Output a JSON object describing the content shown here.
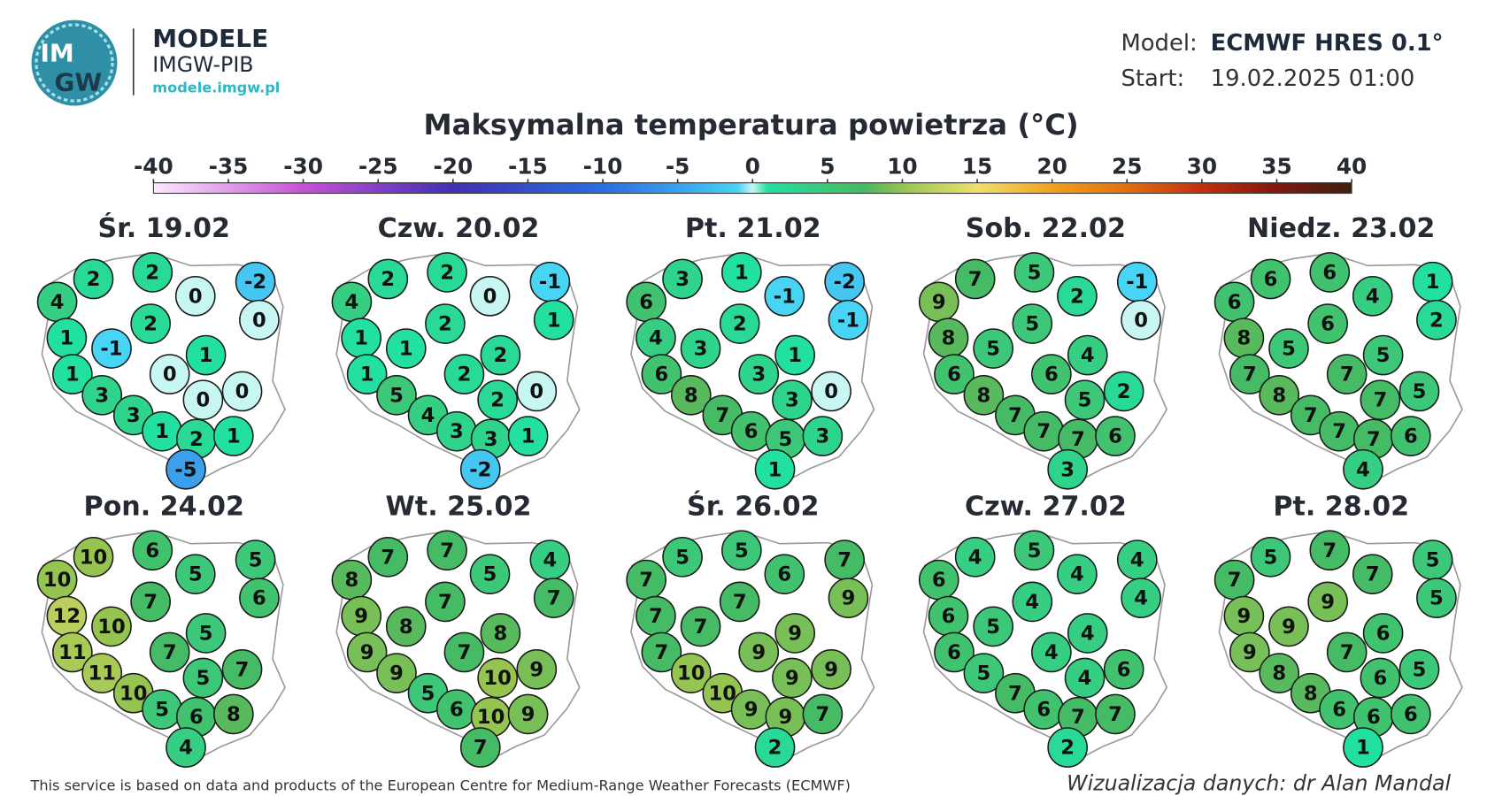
{
  "header": {
    "logo_lines": [
      "IM",
      "GW"
    ],
    "brand": "MODELE",
    "institute": "IMGW-PIB",
    "url": "modele.imgw.pl",
    "model_label": "Model:",
    "model_value": "ECMWF HRES 0.1°",
    "start_label": "Start:",
    "start_value": "19.02.2025 01:00"
  },
  "title": "Maksymalna temperatura powietrza (°C)",
  "colorbar": {
    "lim": [
      -40,
      40
    ],
    "ticks": [
      -40,
      -35,
      -30,
      -25,
      -20,
      -15,
      -10,
      -5,
      0,
      5,
      10,
      15,
      20,
      25,
      30,
      35,
      40
    ]
  },
  "panels": [
    {
      "date": "Śr. 19.02",
      "values": [
        4,
        2,
        2,
        0,
        -2,
        0,
        1,
        -1,
        2,
        1,
        1,
        3,
        0,
        3,
        0,
        0,
        1,
        2,
        1,
        -5
      ]
    },
    {
      "date": "Czw. 20.02",
      "values": [
        4,
        2,
        2,
        0,
        -1,
        1,
        1,
        1,
        2,
        2,
        1,
        5,
        2,
        4,
        2,
        0,
        3,
        3,
        1,
        -2
      ]
    },
    {
      "date": "Pt. 21.02",
      "values": [
        6,
        3,
        1,
        -1,
        -2,
        -1,
        4,
        3,
        2,
        1,
        6,
        8,
        3,
        7,
        3,
        0,
        6,
        5,
        3,
        1
      ]
    },
    {
      "date": "Sob. 22.02",
      "values": [
        9,
        7,
        5,
        2,
        -1,
        0,
        8,
        5,
        5,
        4,
        6,
        8,
        6,
        7,
        5,
        2,
        7,
        7,
        6,
        3
      ]
    },
    {
      "date": "Niedz. 23.02",
      "values": [
        6,
        6,
        6,
        4,
        1,
        2,
        8,
        5,
        6,
        5,
        7,
        8,
        7,
        7,
        7,
        5,
        7,
        7,
        6,
        4
      ]
    },
    {
      "date": "Pon. 24.02",
      "values": [
        10,
        10,
        6,
        5,
        5,
        6,
        12,
        10,
        7,
        5,
        11,
        11,
        7,
        10,
        5,
        7,
        5,
        6,
        8,
        4
      ]
    },
    {
      "date": "Wt. 25.02",
      "values": [
        8,
        7,
        7,
        5,
        4,
        7,
        9,
        8,
        7,
        8,
        9,
        9,
        7,
        5,
        10,
        9,
        6,
        10,
        9,
        7
      ]
    },
    {
      "date": "Śr. 26.02",
      "values": [
        7,
        5,
        5,
        6,
        7,
        9,
        7,
        7,
        7,
        9,
        7,
        10,
        9,
        10,
        9,
        9,
        9,
        9,
        7,
        2
      ]
    },
    {
      "date": "Czw. 27.02",
      "values": [
        6,
        4,
        5,
        4,
        4,
        4,
        6,
        5,
        4,
        4,
        6,
        5,
        4,
        7,
        4,
        6,
        6,
        7,
        7,
        2
      ]
    },
    {
      "date": "Pt. 28.02",
      "values": [
        7,
        5,
        7,
        7,
        5,
        5,
        9,
        9,
        9,
        6,
        9,
        8,
        7,
        8,
        6,
        5,
        6,
        6,
        6,
        1
      ]
    }
  ],
  "footer": {
    "source": "This service is based on data and products of the European Centre for Medium-Range Weather Forecasts (ECMWF)",
    "credit": "Wizualizacja danych: dr Alan Mandal"
  }
}
